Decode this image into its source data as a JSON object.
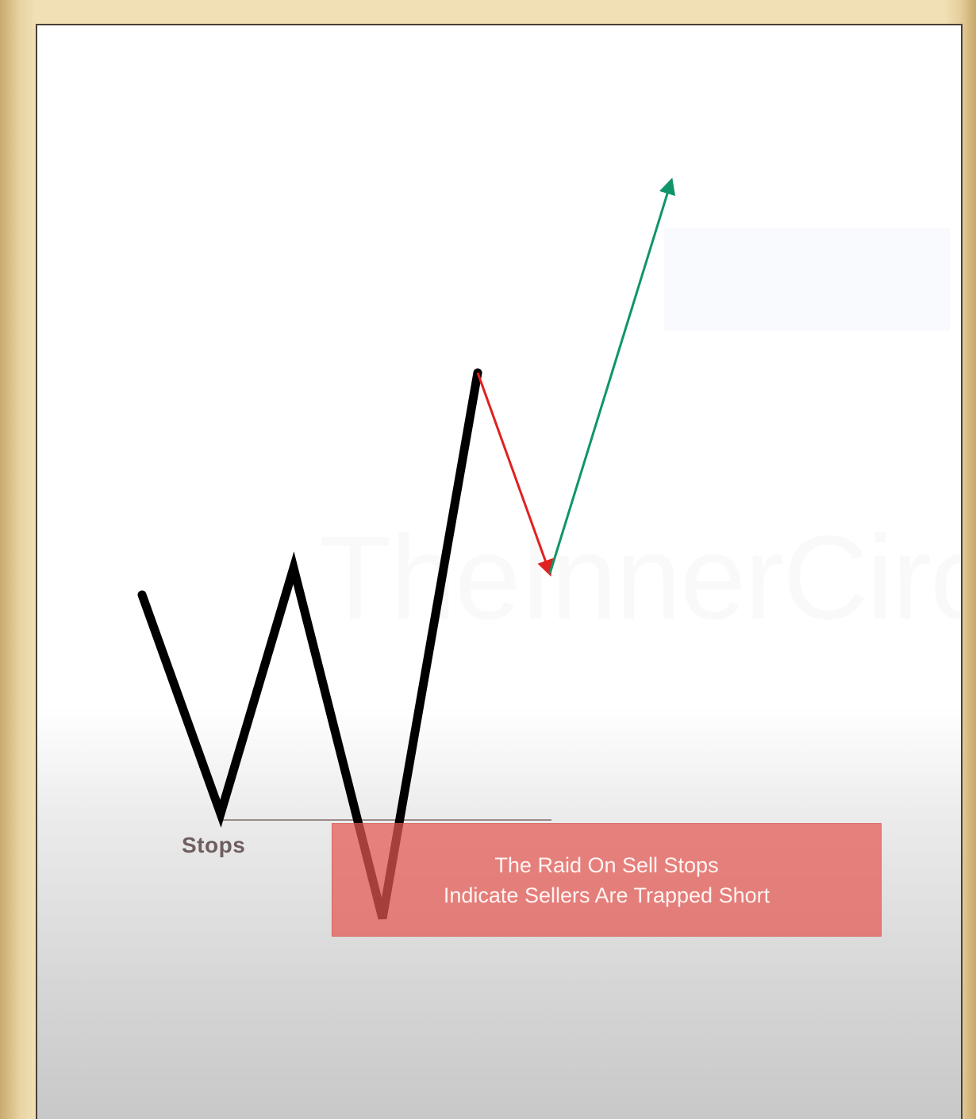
{
  "watermark": "TheInnerCirc",
  "labels": {
    "stops": "Stops"
  },
  "annotation": {
    "line1": "The Raid On Sell Stops",
    "line2": "Indicate Sellers Are Trapped Short"
  },
  "colors": {
    "price_path": "#000000",
    "retrace_arrow": "#e02020",
    "expansion_arrow": "#10956a",
    "stops_line": "#9a8a8a",
    "annotation_box": "#e45852"
  }
}
